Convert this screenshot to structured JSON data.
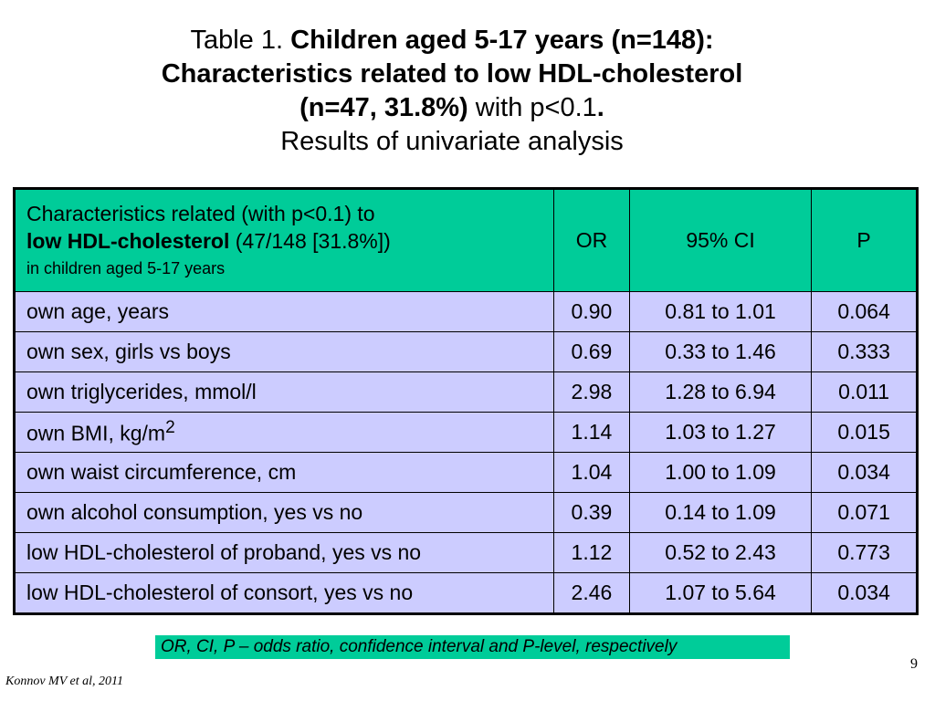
{
  "title": {
    "prefix": "Table 1. ",
    "line1_bold": "Children aged 5-17  years (n=148):",
    "line2_bold": "Characteristics related to low HDL-cholesterol",
    "line3_bold": "(n=47, 31.8%)",
    "line3_normal": " with p<0.1",
    "line3_period": ".",
    "line4": "Results of univariate analysis"
  },
  "table": {
    "header": {
      "main_line1": "Characteristics related (with p<0.1) to",
      "main_line2_bold": "low HDL-cholesterol",
      "main_line2_normal": " (47/148 [31.8%])",
      "main_line3": "in children aged 5-17 years",
      "col_or": "OR",
      "col_ci": "95% CI",
      "col_p": "P"
    },
    "rows": [
      {
        "label": "own age, years",
        "or": "0.90",
        "ci": "0.81 to 1.01",
        "p": "0.064"
      },
      {
        "label": "own sex, girls vs boys",
        "or": "0.69",
        "ci": "0.33 to 1.46",
        "p": "0.333"
      },
      {
        "label": "own triglycerides, mmol/l",
        "or": "2.98",
        "ci": "1.28 to 6.94",
        "p": "0.011"
      },
      {
        "label": "own BMI, kg/m",
        "label_sup": "2",
        "or": "1.14",
        "ci": "1.03 to 1.27",
        "p": "0.015"
      },
      {
        "label": "own waist circumference, cm",
        "or": "1.04",
        "ci": "1.00 to 1.09",
        "p": "0.034"
      },
      {
        "label": "own alcohol consumption, yes vs no",
        "or": "0.39",
        "ci": "0.14 to 1.09",
        "p": "0.071"
      },
      {
        "label": "low HDL-cholesterol of proband, yes vs no",
        "or": "1.12",
        "ci": "0.52 to 2.43",
        "p": "0.773"
      },
      {
        "label": "low HDL-cholesterol of consort, yes vs no",
        "or": "2.46",
        "ci": "1.07 to 5.64",
        "p": "0.034"
      }
    ]
  },
  "footnote": "OR, CI, P – odds ratio, confidence interval and P-level, respectively",
  "citation": "Konnov MV et al, 2011",
  "page_number": "9",
  "colors": {
    "header_bg": "#00cc99",
    "row_bg": "#ccccff",
    "footnote_bg": "#00cc99"
  }
}
